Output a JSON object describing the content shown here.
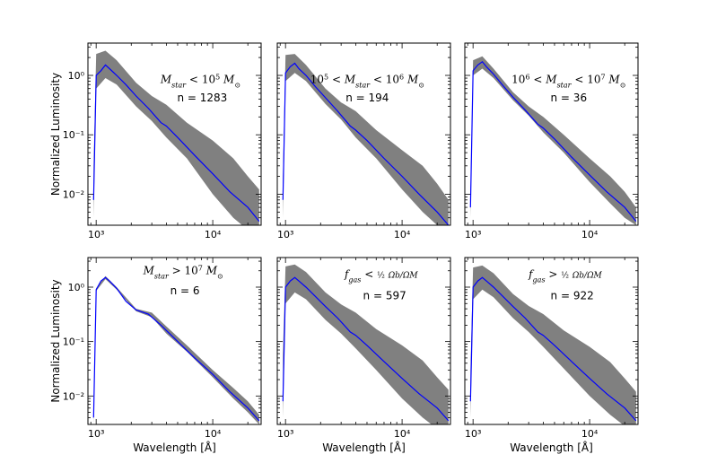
{
  "chart_data": [
    {
      "type": "area",
      "panel": "top-left",
      "label_main": "Mstar < 10^5 M⊙",
      "count_text": "n = 1283",
      "xscale": "log",
      "yscale": "log",
      "xlim": [
        850,
        26000
      ],
      "ylim": [
        0.003,
        3.5
      ],
      "xticks": [
        {
          "value": 1000,
          "label": "10³"
        },
        {
          "value": 10000,
          "label": "10⁴"
        }
      ],
      "yticks": [
        {
          "value": 1,
          "label": "10⁰"
        },
        {
          "value": 0.1,
          "label": "10⁻¹"
        },
        {
          "value": 0.01,
          "label": "10⁻²"
        }
      ],
      "ylabel": "Normalized Luminosity",
      "xlabel": "",
      "series": [
        {
          "name": "median",
          "color": "#0000ff",
          "x": [
            950,
            1000,
            1100,
            1200,
            1300,
            1500,
            1800,
            2200,
            2800,
            3600,
            4000,
            5000,
            7000,
            10000,
            14000,
            20000,
            25000
          ],
          "y": [
            0.008,
            1.0,
            1.2,
            1.5,
            1.3,
            1.0,
            0.7,
            0.45,
            0.28,
            0.16,
            0.14,
            0.09,
            0.045,
            0.022,
            0.011,
            0.006,
            0.0035
          ]
        },
        {
          "name": "spread",
          "color": "#808080",
          "x": [
            950,
            1000,
            1200,
            1500,
            2200,
            3000,
            4000,
            6000,
            10000,
            15000,
            20000,
            25000
          ],
          "ylow": [
            0.004,
            0.6,
            0.9,
            0.7,
            0.3,
            0.17,
            0.09,
            0.04,
            0.01,
            0.004,
            0.0025,
            0.002
          ],
          "yhigh": [
            0.03,
            2.3,
            2.6,
            1.8,
            0.75,
            0.45,
            0.32,
            0.16,
            0.08,
            0.04,
            0.02,
            0.012
          ]
        }
      ]
    },
    {
      "type": "area",
      "panel": "top-middle",
      "label_main": "10^5 < Mstar < 10^6 M⊙",
      "count_text": "n = 194",
      "xscale": "log",
      "yscale": "log",
      "xlim": [
        850,
        26000
      ],
      "ylim": [
        0.003,
        3.5
      ],
      "xticks": [
        {
          "value": 1000,
          "label": "10³"
        },
        {
          "value": 10000,
          "label": "10⁴"
        }
      ],
      "yticks": [],
      "ylabel": "",
      "xlabel": "",
      "series": [
        {
          "name": "median",
          "color": "#0000ff",
          "x": [
            950,
            1000,
            1100,
            1200,
            1300,
            1500,
            1800,
            2200,
            2800,
            3600,
            4000,
            5000,
            7000,
            10000,
            14000,
            20000,
            25000
          ],
          "y": [
            0.008,
            1.1,
            1.4,
            1.6,
            1.3,
            1.0,
            0.65,
            0.42,
            0.25,
            0.14,
            0.12,
            0.08,
            0.04,
            0.02,
            0.01,
            0.005,
            0.003
          ]
        },
        {
          "name": "spread",
          "color": "#808080",
          "x": [
            950,
            1000,
            1200,
            1500,
            2200,
            3000,
            4000,
            6000,
            10000,
            15000,
            20000,
            25000
          ],
          "ylow": [
            0.004,
            0.8,
            1.1,
            0.8,
            0.33,
            0.18,
            0.09,
            0.04,
            0.012,
            0.005,
            0.003,
            0.002
          ],
          "yhigh": [
            0.02,
            2.2,
            2.3,
            1.5,
            0.6,
            0.35,
            0.25,
            0.12,
            0.055,
            0.03,
            0.015,
            0.008
          ]
        }
      ]
    },
    {
      "type": "area",
      "panel": "top-right",
      "label_main": "10^6 < Mstar < 10^7 M⊙",
      "count_text": "n = 36",
      "xscale": "log",
      "yscale": "log",
      "xlim": [
        850,
        26000
      ],
      "ylim": [
        0.003,
        3.5
      ],
      "xticks": [
        {
          "value": 1000,
          "label": "10³"
        },
        {
          "value": 10000,
          "label": "10⁴"
        }
      ],
      "yticks": [],
      "ylabel": "",
      "xlabel": "",
      "series": [
        {
          "name": "median",
          "color": "#0000ff",
          "x": [
            950,
            1000,
            1100,
            1200,
            1300,
            1500,
            1800,
            2200,
            2800,
            3600,
            4000,
            5000,
            7000,
            10000,
            14000,
            20000,
            25000
          ],
          "y": [
            0.006,
            1.2,
            1.5,
            1.7,
            1.4,
            1.05,
            0.68,
            0.43,
            0.26,
            0.15,
            0.13,
            0.085,
            0.042,
            0.021,
            0.011,
            0.006,
            0.0035
          ]
        },
        {
          "name": "spread",
          "color": "#808080",
          "x": [
            950,
            1000,
            1200,
            1500,
            2200,
            3000,
            4000,
            6000,
            10000,
            15000,
            20000,
            25000
          ],
          "ylow": [
            0.004,
            1.0,
            1.3,
            0.9,
            0.38,
            0.21,
            0.11,
            0.05,
            0.016,
            0.007,
            0.004,
            0.003
          ],
          "yhigh": [
            0.012,
            1.8,
            2.1,
            1.3,
            0.52,
            0.3,
            0.2,
            0.1,
            0.04,
            0.02,
            0.011,
            0.006
          ]
        }
      ]
    },
    {
      "type": "area",
      "panel": "bottom-left",
      "label_main": "Mstar > 10^7 M⊙",
      "count_text": "n = 6",
      "xscale": "log",
      "yscale": "log",
      "xlim": [
        850,
        26000
      ],
      "ylim": [
        0.003,
        3.5
      ],
      "xticks": [
        {
          "value": 1000,
          "label": "10³"
        },
        {
          "value": 10000,
          "label": "10⁴"
        }
      ],
      "yticks": [
        {
          "value": 1,
          "label": "10⁰"
        },
        {
          "value": 0.1,
          "label": "10⁻¹"
        },
        {
          "value": 0.01,
          "label": "10⁻²"
        }
      ],
      "ylabel": "Normalized Luminosity",
      "xlabel": "Wavelength [Å]",
      "series": [
        {
          "name": "median",
          "color": "#0000ff",
          "x": [
            950,
            1000,
            1100,
            1200,
            1300,
            1500,
            1800,
            2200,
            2800,
            3600,
            4000,
            5000,
            7000,
            10000,
            14000,
            20000,
            25000
          ],
          "y": [
            0.004,
            0.9,
            1.3,
            1.5,
            1.3,
            0.95,
            0.55,
            0.38,
            0.32,
            0.2,
            0.16,
            0.1,
            0.05,
            0.025,
            0.012,
            0.006,
            0.0035
          ]
        },
        {
          "name": "spread",
          "color": "#808080",
          "x": [
            950,
            1000,
            1200,
            1500,
            2200,
            3000,
            4000,
            6000,
            10000,
            15000,
            20000,
            25000
          ],
          "ylow": [
            0.003,
            0.85,
            1.4,
            0.9,
            0.36,
            0.28,
            0.14,
            0.065,
            0.022,
            0.009,
            0.005,
            0.003
          ],
          "yhigh": [
            0.005,
            0.95,
            1.6,
            1.0,
            0.4,
            0.34,
            0.19,
            0.085,
            0.03,
            0.014,
            0.008,
            0.0045
          ]
        }
      ]
    },
    {
      "type": "area",
      "panel": "bottom-middle",
      "label_main": "fgas < 1/2 Ωb/ΩM",
      "count_text": "n = 597",
      "xscale": "log",
      "yscale": "log",
      "xlim": [
        850,
        26000
      ],
      "ylim": [
        0.003,
        3.5
      ],
      "xticks": [
        {
          "value": 1000,
          "label": "10³"
        },
        {
          "value": 10000,
          "label": "10⁴"
        }
      ],
      "yticks": [],
      "ylabel": "",
      "xlabel": "Wavelength [Å]",
      "series": [
        {
          "name": "median",
          "color": "#0000ff",
          "x": [
            950,
            1000,
            1100,
            1200,
            1300,
            1500,
            1800,
            2200,
            2800,
            3600,
            4000,
            5000,
            7000,
            10000,
            14000,
            20000,
            25000
          ],
          "y": [
            0.008,
            1.0,
            1.3,
            1.5,
            1.3,
            1.0,
            0.68,
            0.44,
            0.27,
            0.15,
            0.13,
            0.085,
            0.043,
            0.021,
            0.011,
            0.006,
            0.0035
          ]
        },
        {
          "name": "spread",
          "color": "#808080",
          "x": [
            950,
            1000,
            1200,
            1500,
            2200,
            3000,
            4000,
            6000,
            10000,
            15000,
            20000,
            25000
          ],
          "ylow": [
            0.004,
            0.5,
            0.8,
            0.6,
            0.25,
            0.14,
            0.075,
            0.03,
            0.009,
            0.004,
            0.0025,
            0.002
          ],
          "yhigh": [
            0.06,
            2.4,
            2.6,
            1.9,
            0.8,
            0.48,
            0.34,
            0.17,
            0.085,
            0.045,
            0.022,
            0.013
          ]
        }
      ]
    },
    {
      "type": "area",
      "panel": "bottom-right",
      "label_main": "fgas > 1/2 Ωb/ΩM",
      "count_text": "n = 922",
      "xscale": "log",
      "yscale": "log",
      "xlim": [
        850,
        26000
      ],
      "ylim": [
        0.003,
        3.5
      ],
      "xticks": [
        {
          "value": 1000,
          "label": "10³"
        },
        {
          "value": 10000,
          "label": "10⁴"
        }
      ],
      "yticks": [],
      "ylabel": "",
      "xlabel": "Wavelength [Å]",
      "series": [
        {
          "name": "median",
          "color": "#0000ff",
          "x": [
            950,
            1000,
            1100,
            1200,
            1300,
            1500,
            1800,
            2200,
            2800,
            3600,
            4000,
            5000,
            7000,
            10000,
            14000,
            20000,
            25000
          ],
          "y": [
            0.008,
            1.0,
            1.3,
            1.5,
            1.3,
            1.0,
            0.68,
            0.44,
            0.27,
            0.15,
            0.13,
            0.085,
            0.043,
            0.021,
            0.011,
            0.006,
            0.0035
          ]
        },
        {
          "name": "spread",
          "color": "#808080",
          "x": [
            950,
            1000,
            1200,
            1500,
            2200,
            3000,
            4000,
            6000,
            10000,
            15000,
            20000,
            25000
          ],
          "ylow": [
            0.004,
            0.6,
            0.9,
            0.65,
            0.27,
            0.15,
            0.08,
            0.032,
            0.01,
            0.0045,
            0.0028,
            0.002
          ],
          "yhigh": [
            0.03,
            2.3,
            2.5,
            1.8,
            0.75,
            0.45,
            0.32,
            0.16,
            0.08,
            0.042,
            0.021,
            0.012
          ]
        }
      ]
    }
  ]
}
